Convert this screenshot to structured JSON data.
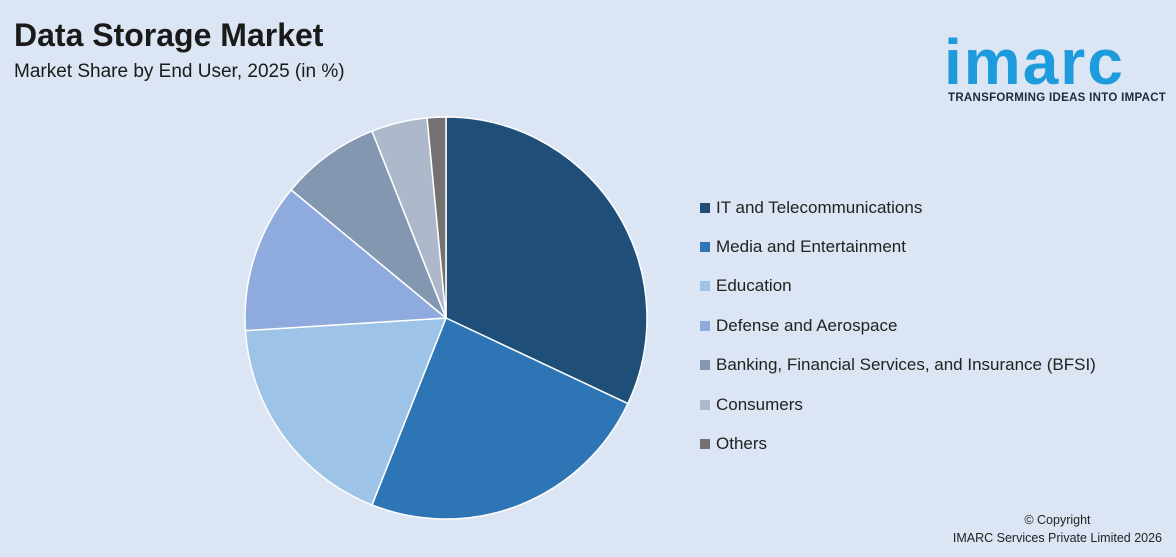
{
  "header": {
    "title": "Data Storage Market",
    "subtitle": "Market Share by End User, 2025 (in %)"
  },
  "logo": {
    "word": "imarc",
    "tagline": "TRANSFORMING IDEAS INTO IMPACT",
    "color": "#1e9bdc"
  },
  "chart_data": {
    "type": "pie",
    "title": "Data Storage Market",
    "subtitle": "Market Share by End User, 2025 (in %)",
    "legend_position": "right",
    "start_angle": "top, clockwise",
    "categories": [
      "IT and Telecommunications",
      "Media and Entertainment",
      "Education",
      "Defense and Aerospace",
      "Banking, Financial Services, and Insurance (BFSI)",
      "Consumers",
      "Others"
    ],
    "values": [
      32,
      24,
      18,
      12,
      8,
      4.5,
      1.5
    ],
    "colors": [
      "#1f4e79",
      "#2e75b6",
      "#9dc3e6",
      "#8faadc",
      "#8497b0",
      "#adb9ca",
      "#767171"
    ]
  },
  "footer": {
    "copyright_line1": "© Copyright",
    "copyright_line2": "IMARC Services Private Limited 2026"
  }
}
